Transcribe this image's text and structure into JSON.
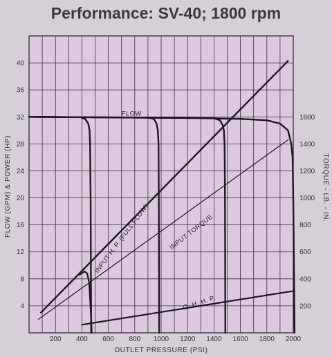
{
  "chart_data": {
    "type": "line",
    "title": "Performance: SV-40; 1800 rpm",
    "xlabel": "OUTLET PRESSURE (PSI)",
    "ylabel": "FLOW (GPM) & POWER (HP)",
    "y2label": "TORQUE - LB. - IN.",
    "xlim": [
      0,
      2000
    ],
    "ylim": [
      0,
      44
    ],
    "y2lim": [
      0,
      2200
    ],
    "x_ticks": [
      200,
      400,
      600,
      800,
      1000,
      1200,
      1400,
      1600,
      1800,
      2000
    ],
    "y_ticks": [
      4,
      8,
      12,
      16,
      20,
      24,
      28,
      32,
      36,
      40
    ],
    "y2_ticks": [
      200,
      400,
      600,
      800,
      1000,
      1200,
      1400,
      1600
    ],
    "x_grid_step": 100,
    "y_grid_step": 4,
    "grid": true,
    "series": [
      {
        "name": "FLOW",
        "axis": "left",
        "points": [
          [
            0,
            32
          ],
          [
            400,
            31.95
          ],
          [
            800,
            31.9
          ],
          [
            1200,
            31.85
          ],
          [
            1600,
            31.7
          ],
          [
            1800,
            31.5
          ],
          [
            1900,
            31
          ],
          [
            1960,
            30
          ],
          [
            1985,
            28
          ],
          [
            1995,
            26
          ],
          [
            2000,
            20
          ],
          [
            2005,
            10
          ],
          [
            2010,
            0
          ]
        ]
      },
      {
        "name": "FLOW",
        "axis": "left",
        "points": [
          [
            0,
            32
          ],
          [
            390,
            31.95
          ],
          [
            425,
            31.7
          ],
          [
            448,
            31
          ],
          [
            458,
            30
          ],
          [
            462,
            28
          ],
          [
            466,
            20
          ],
          [
            470,
            0
          ]
        ]
      },
      {
        "name": "FLOW",
        "axis": "left",
        "points": [
          [
            0,
            32
          ],
          [
            900,
            31.9
          ],
          [
            945,
            31.7
          ],
          [
            965,
            31
          ],
          [
            975,
            30
          ],
          [
            980,
            28
          ],
          [
            982,
            20
          ],
          [
            985,
            0
          ]
        ]
      },
      {
        "name": "FLOW",
        "axis": "left",
        "points": [
          [
            0,
            32
          ],
          [
            1400,
            31.8
          ],
          [
            1445,
            31.5
          ],
          [
            1465,
            30.8
          ],
          [
            1475,
            30
          ],
          [
            1480,
            28
          ],
          [
            1483,
            20
          ],
          [
            1486,
            0
          ]
        ]
      },
      {
        "name": "INPUT H. P. (FULL FLOW)",
        "axis": "left",
        "points": [
          [
            90,
            3
          ],
          [
            1960,
            40.3
          ]
        ]
      },
      {
        "name": "INPUT H. P.",
        "axis": "left",
        "points": [
          [
            380,
            8.6
          ],
          [
            420,
            9.1
          ],
          [
            440,
            8.8
          ],
          [
            455,
            7.5
          ],
          [
            465,
            4
          ],
          [
            475,
            0
          ]
        ]
      },
      {
        "name": "INPUT TORQUE",
        "axis": "right",
        "points": [
          [
            70,
            100
          ],
          [
            1960,
            1430
          ]
        ]
      },
      {
        "name": "O. H. H. P.",
        "axis": "left",
        "points": [
          [
            400,
            1.2
          ],
          [
            2000,
            6.2
          ]
        ]
      }
    ],
    "annotations": [
      {
        "text": "FLOW",
        "x": 700,
        "y": 32.2,
        "rotate": 0
      },
      {
        "text": "INPUT H. P. (FULL FLOW)",
        "x": 520,
        "y": 8.8,
        "rotate": -53
      },
      {
        "text": "INPUT TORQUE",
        "x": 1080,
        "y": 12.3,
        "rotate": -38
      },
      {
        "text": "O. H. H. P.",
        "x": 1170,
        "y": 3.4,
        "rotate": -18
      }
    ]
  }
}
